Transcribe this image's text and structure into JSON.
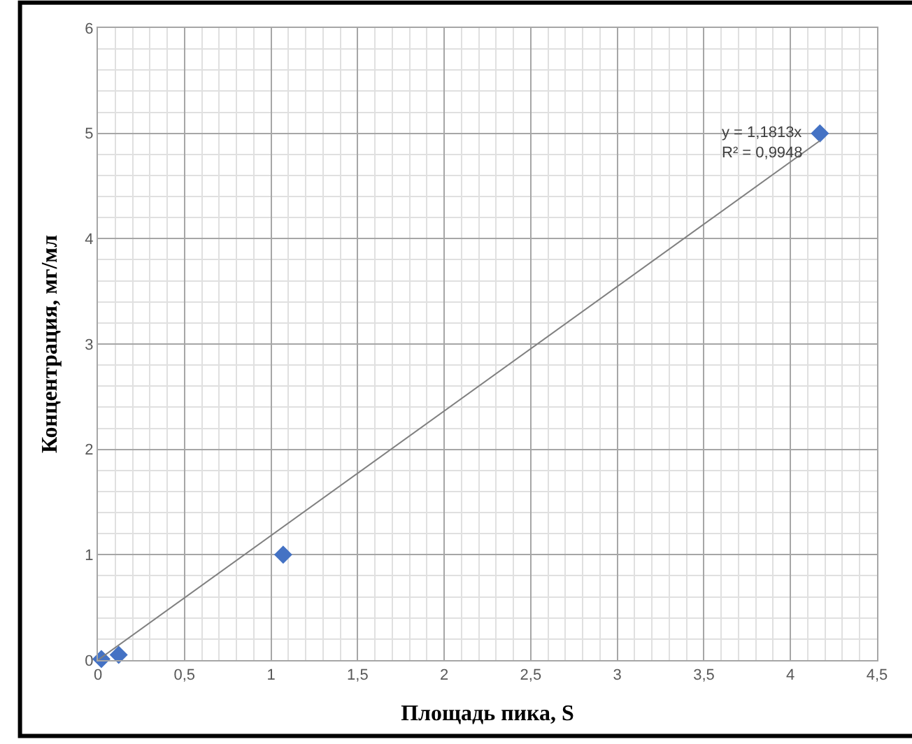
{
  "chart_data": {
    "type": "scatter",
    "xlabel": "Площадь пика, S",
    "ylabel": "Концентрация, мг/мл",
    "series": [
      {
        "color": "#4472c4",
        "marker": "diamond",
        "x": [
          0.02,
          0.12,
          1.07,
          4.17
        ],
        "values": [
          0.01,
          0.05,
          1.0,
          5.0
        ]
      },
      {
        "type": "line",
        "color": "#808080",
        "marker": "none",
        "line_style": "solid",
        "x": [
          0,
          4.17
        ],
        "values": [
          0,
          4.93
        ]
      }
    ],
    "annotations": [
      {
        "text": "y = 1,1813x\nR² = 0,9948",
        "x": 4.17,
        "y": 5.0
      }
    ],
    "xlim": [
      0,
      4.5
    ],
    "xticks": [
      0,
      {
        "value": 0.5,
        "label": "0,5"
      },
      1,
      {
        "value": 1.5,
        "label": "1,5"
      },
      2,
      {
        "value": 2.5,
        "label": "2,5"
      },
      3,
      {
        "value": 3.5,
        "label": "3,5"
      },
      4,
      {
        "value": 4.5,
        "label": "4,5"
      }
    ],
    "ylim": [
      0,
      6
    ],
    "yticks": [
      0,
      1,
      2,
      3,
      4,
      5,
      6
    ],
    "grid": true
  }
}
